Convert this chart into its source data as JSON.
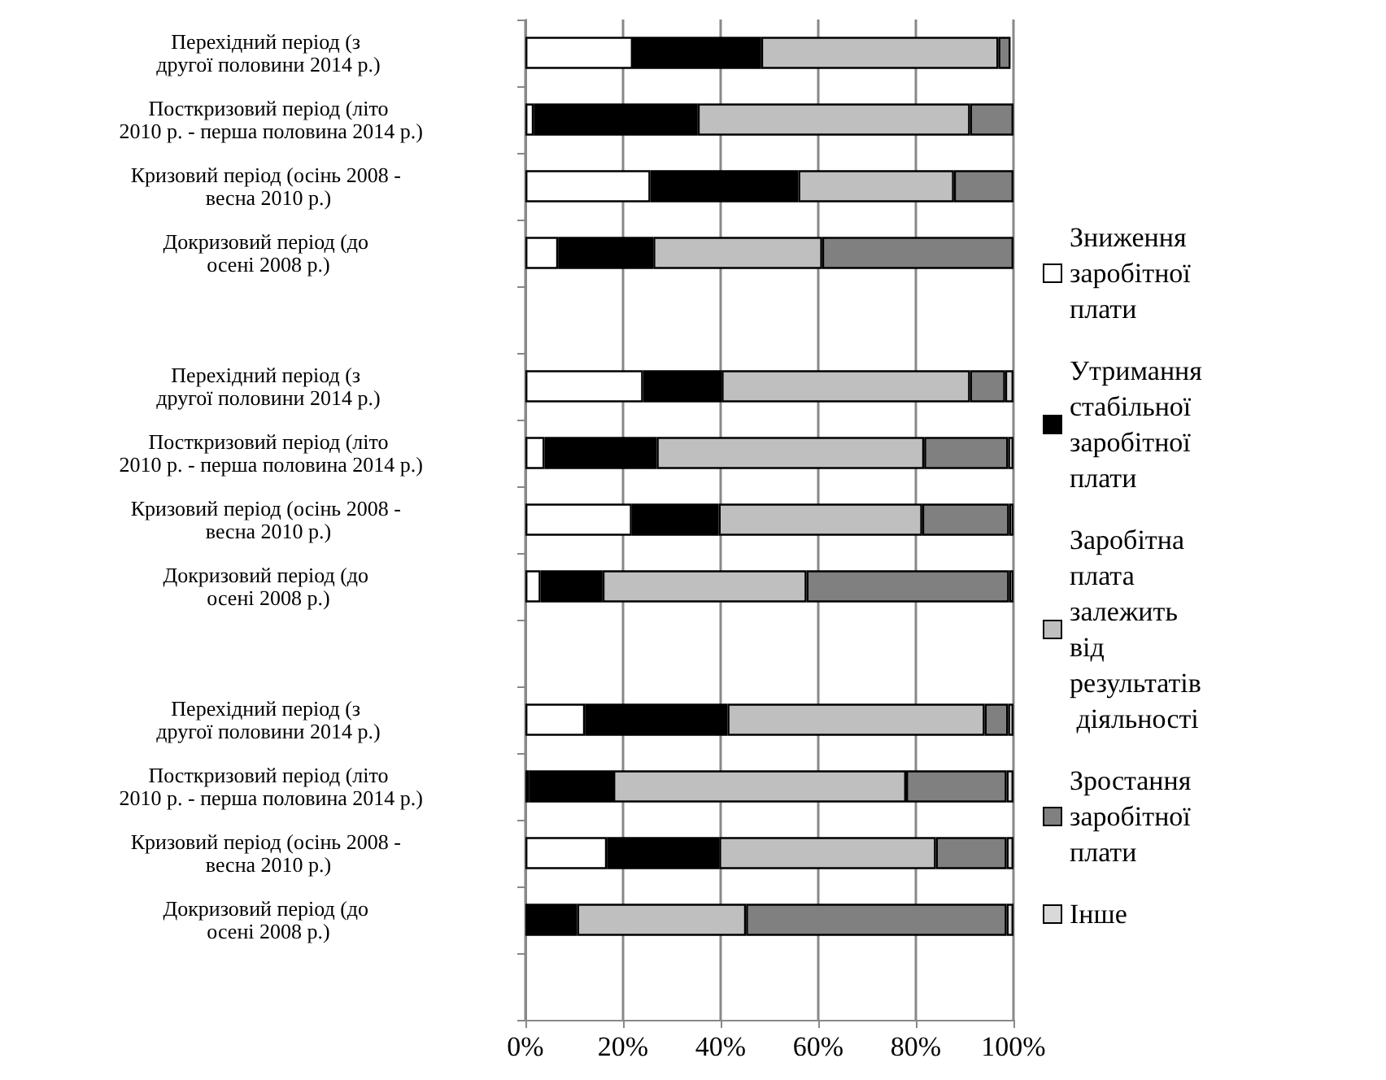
{
  "chart_data": {
    "type": "bar",
    "orientation": "horizontal",
    "stacked": true,
    "categories": [
      "Перехідний період (з другої половини 2014 р.)",
      "Посткризовий період (літо 2010 р. - перша половина 2014 р.)",
      "Кризовий період (осінь 2008 - весна 2010 р.)",
      "Докризовий період (до осені 2008 р.)",
      null,
      "Перехідний період (з другої половини 2014 р.)",
      "Посткризовий період (літо 2010 р. - перша половина 2014 р.)",
      "Кризовий період (осінь 2008 - весна 2010 р.)",
      "Докризовий період (до осені 2008 р.)",
      null,
      "Перехідний період (з другої половини 2014 р.)",
      "Посткризовий період (літо 2010 р. - перша половина 2014 р.)",
      "Кризовий період (осінь 2008 - весна 2010 р.)",
      "Докризовий період (до осені 2008 р.)",
      null
    ],
    "series": [
      {
        "name": "Зниження заробітної плати",
        "color": "#ffffff",
        "values": [
          22,
          1.7,
          25.6,
          6.7,
          null,
          24.1,
          3.9,
          21.8,
          3.1,
          null,
          12.2,
          0.8,
          16.7,
          0,
          null
        ]
      },
      {
        "name": "Утримання стабільної заробітної плати",
        "color": "#000000",
        "values": [
          26.3,
          33.6,
          30.3,
          19.5,
          null,
          16.1,
          23,
          17.8,
          12.7,
          null,
          29.2,
          17.2,
          23,
          10.6,
          null
        ]
      },
      {
        "name": "Заробітна плата залежить від результатів діяльності",
        "color": "#bfbfbf",
        "values": [
          48.6,
          55.8,
          31.9,
          34.6,
          null,
          50.9,
          54.8,
          41.7,
          41.8,
          null,
          52.7,
          60,
          44.4,
          34.6,
          null
        ]
      },
      {
        "name": "Зростання заробітної плати",
        "color": "#808080",
        "values": [
          2.5,
          8.9,
          12.2,
          39.2,
          null,
          7.2,
          17.2,
          17.8,
          41.5,
          null,
          4.8,
          20.6,
          14.5,
          53.4,
          null
        ]
      },
      {
        "name": "Інше",
        "color": "#d9d9d9",
        "values": [
          null,
          0,
          0,
          0,
          null,
          1.7,
          1.1,
          0.9,
          0.9,
          null,
          1.1,
          1.4,
          1.4,
          1.4,
          null
        ]
      }
    ],
    "xlim": [
      0,
      100
    ],
    "xticks": [
      {
        "value": 0,
        "label": "0%"
      },
      {
        "value": 20,
        "label": "20%"
      },
      {
        "value": 40,
        "label": "40%"
      },
      {
        "value": 60,
        "label": "60%"
      },
      {
        "value": 80,
        "label": "80%"
      },
      {
        "value": 100,
        "label": "100%"
      }
    ],
    "grid": "x",
    "legend": "right"
  }
}
